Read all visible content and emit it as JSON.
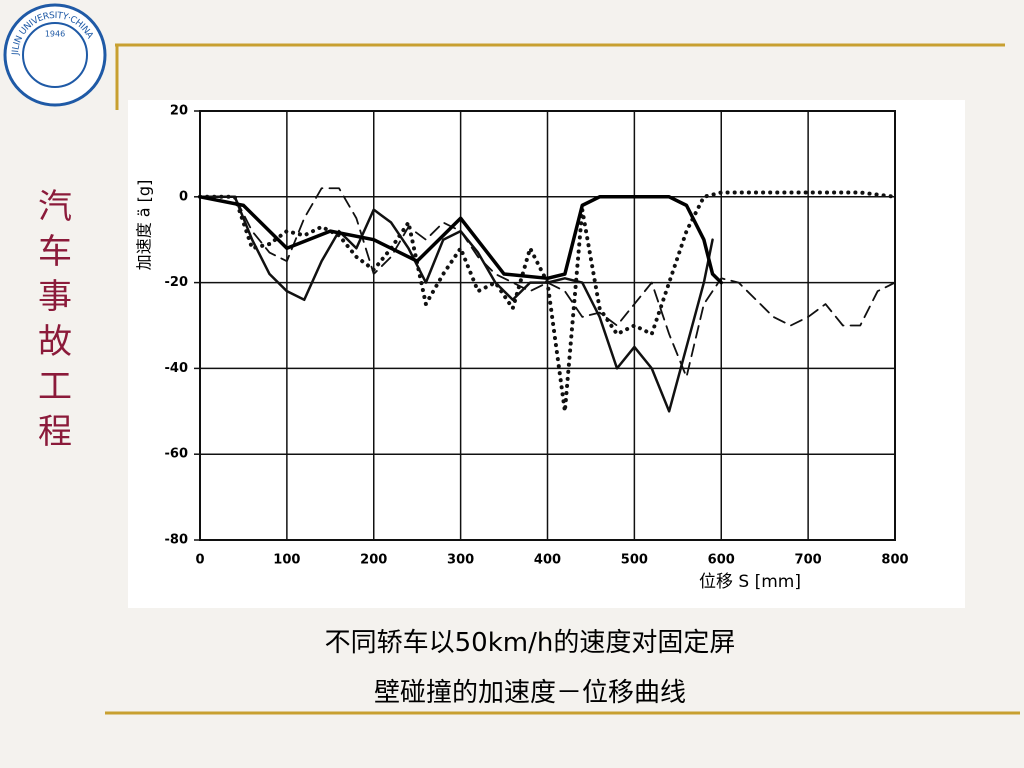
{
  "logo": {
    "name": "JILIN UNIVERSITY·CHINA",
    "year": "1946"
  },
  "side_title": [
    "汽",
    "车",
    "事",
    "故",
    "工",
    "程"
  ],
  "caption": [
    "不同轿车以50km/h的速度对固定屏",
    "壁碰撞的加速度－位移曲线"
  ],
  "chart_data": {
    "type": "line",
    "xlabel": "位移 S [mm]",
    "ylabel": "加速度 ä [g]",
    "xlim": [
      0,
      800
    ],
    "xticks": [
      0,
      100,
      200,
      300,
      400,
      500,
      600,
      700,
      800
    ],
    "ylim": [
      -80,
      20
    ],
    "yticks": [
      -80,
      -60,
      -40,
      -20,
      0,
      20
    ],
    "grid": true,
    "series": [
      {
        "color": "#111111",
        "dash": "solid",
        "width": 2.5,
        "x": [
          0,
          40,
          60,
          80,
          100,
          120,
          140,
          160,
          180,
          200,
          220,
          240,
          260,
          280,
          300,
          320,
          340,
          360,
          380,
          400,
          420,
          440,
          460,
          480,
          500,
          520,
          540,
          560,
          580,
          590
        ],
        "values": [
          0,
          0,
          -10,
          -18,
          -22,
          -24,
          -15,
          -8,
          -12,
          -3,
          -6,
          -12,
          -20,
          -10,
          -8,
          -13,
          -20,
          -24,
          -20,
          -20,
          -19,
          -20,
          -28,
          -40,
          -35,
          -40,
          -50,
          -35,
          -20,
          -10
        ]
      },
      {
        "color": "#111111",
        "dash": "dashed",
        "width": 1.8,
        "x": [
          0,
          40,
          60,
          80,
          100,
          120,
          140,
          160,
          180,
          200,
          220,
          240,
          260,
          280,
          300,
          320,
          340,
          360,
          380,
          400,
          420,
          440,
          460,
          480,
          500,
          520,
          540,
          560,
          580,
          600,
          620,
          640,
          660,
          680,
          700,
          720,
          740,
          760,
          780,
          800
        ],
        "values": [
          0,
          0,
          -8,
          -13,
          -15,
          -5,
          2,
          2,
          -5,
          -18,
          -14,
          -7,
          -10,
          -6,
          -8,
          -14,
          -18,
          -20,
          -22,
          -20,
          -22,
          -28,
          -27,
          -30,
          -25,
          -20,
          -32,
          -42,
          -25,
          -19,
          -20,
          -24,
          -28,
          -30,
          -28,
          -25,
          -30,
          -30,
          -22,
          -20
        ]
      },
      {
        "color": "#111111",
        "dash": "dotted",
        "width": 4,
        "x": [
          0,
          40,
          60,
          80,
          100,
          120,
          140,
          160,
          180,
          200,
          220,
          240,
          260,
          280,
          300,
          320,
          340,
          360,
          380,
          400,
          420,
          440,
          460,
          480,
          500,
          520,
          540,
          560,
          580,
          600,
          620,
          660,
          700,
          760,
          800
        ],
        "values": [
          0,
          0,
          -12,
          -11,
          -8,
          -9,
          -7,
          -9,
          -14,
          -17,
          -12,
          -6,
          -25,
          -18,
          -12,
          -22,
          -20,
          -26,
          -12,
          -20,
          -50,
          -3,
          -26,
          -32,
          -30,
          -32,
          -20,
          -8,
          0,
          1,
          1,
          1,
          1,
          1,
          0
        ]
      },
      {
        "color": "#000000",
        "dash": "solid",
        "width": 3.5,
        "x": [
          0,
          50,
          100,
          150,
          200,
          250,
          300,
          350,
          400,
          420,
          440,
          460,
          500,
          540,
          560,
          580,
          590,
          600
        ],
        "values": [
          0,
          -2,
          -12,
          -8,
          -10,
          -15,
          -5,
          -18,
          -19,
          -18,
          -2,
          0,
          0,
          0,
          -2,
          -10,
          -18,
          -20
        ]
      }
    ]
  }
}
